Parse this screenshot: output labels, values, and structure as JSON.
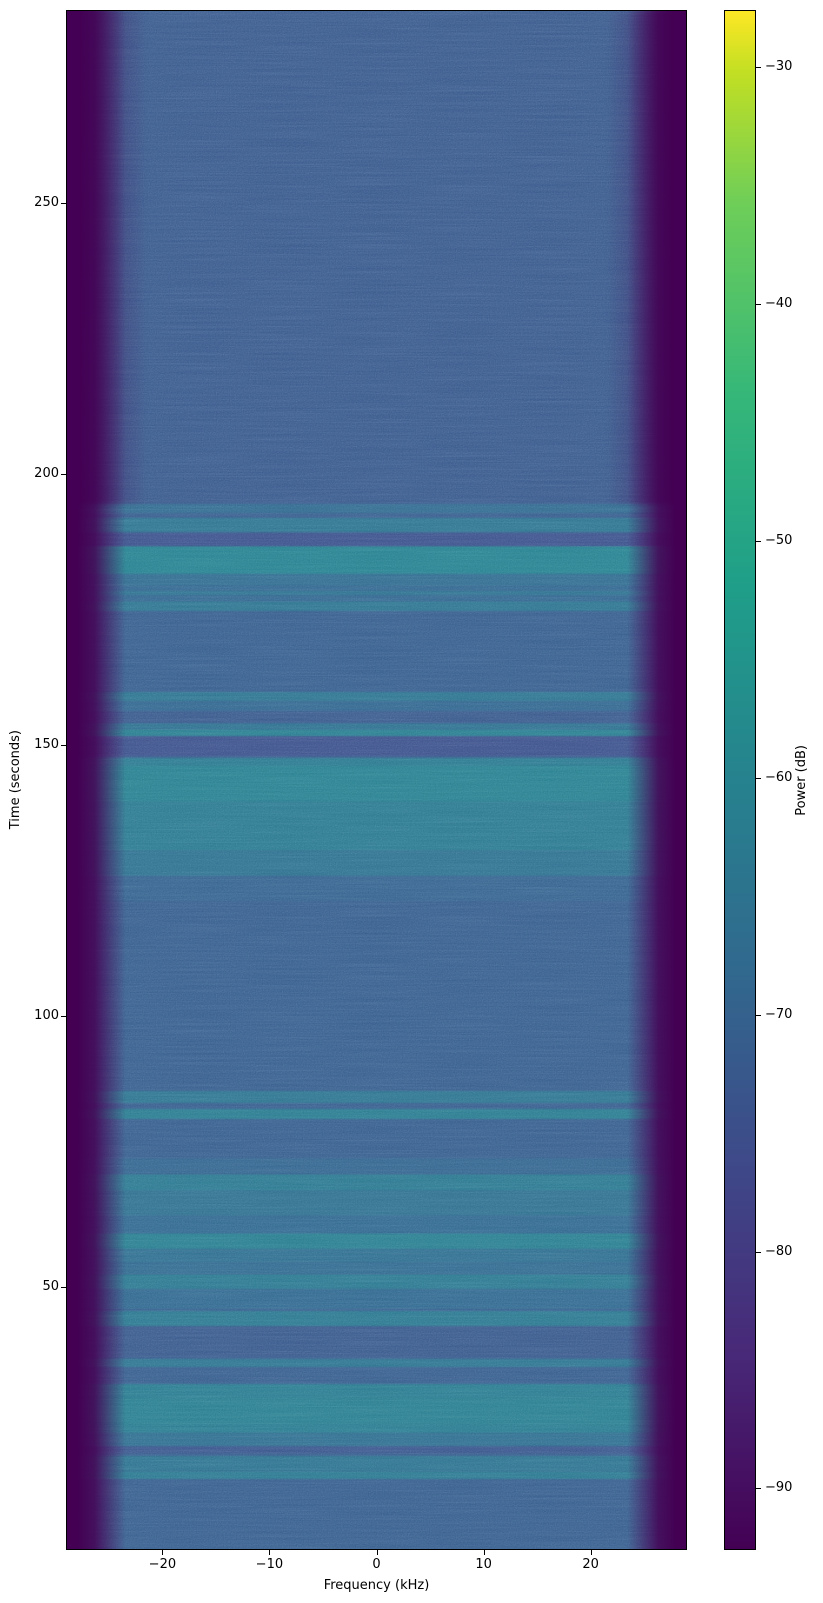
{
  "figure": {
    "background_color": "#ffffff",
    "text_color": "#000000"
  },
  "chart_data": {
    "type": "heatmap",
    "subtype": "spectrogram",
    "title": "",
    "xlabel": "Frequency (kHz)",
    "ylabel": "Time (seconds)",
    "colorbar_label": "Power (dB)",
    "colormap": "viridis",
    "grid": false,
    "x_range_khz": [
      -29,
      29
    ],
    "y_range_seconds": [
      1.5,
      285.6
    ],
    "clim_db": [
      -92.6,
      -27.6
    ],
    "x_ticks_khz": [
      -20,
      -10,
      0,
      10,
      20
    ],
    "y_ticks_seconds": [
      50,
      100,
      150,
      200,
      250
    ],
    "colorbar_ticks_db": [
      -30,
      -40,
      -50,
      -60,
      -70,
      -80,
      -90
    ],
    "background_power_db": -71.5,
    "quiet_region": {
      "t0": 194.6,
      "t1": 285.6,
      "db": -72.4
    },
    "edge_rolloff": {
      "color": "#440154",
      "solid_frac": 0.018,
      "fade_frac": 0.095,
      "quiet_extra_fade_frac": 0.128
    },
    "events": [
      {
        "t0": 14.8,
        "t1": 16.3,
        "db": -64
      },
      {
        "t0": 16.3,
        "t1": 19.0,
        "db": -65.5
      },
      {
        "t0": 19.6,
        "t1": 20.9,
        "db": -73.5
      },
      {
        "t0": 20.9,
        "t1": 23.3,
        "db": -67
      },
      {
        "t0": 23.3,
        "t1": 32.3,
        "db": -63
      },
      {
        "t0": 24.9,
        "t1": 29.5,
        "db": -62
      },
      {
        "t0": 35.4,
        "t1": 36.9,
        "db": -65
      },
      {
        "t0": 37.3,
        "t1": 43.0,
        "db": -72.5
      },
      {
        "t0": 43.0,
        "t1": 45.8,
        "db": -64
      },
      {
        "t0": 46.1,
        "t1": 49.8,
        "db": -68.5
      },
      {
        "t0": 49.8,
        "t1": 52.6,
        "db": -64
      },
      {
        "t0": 52.6,
        "t1": 54.6,
        "db": -68
      },
      {
        "t0": 54.6,
        "t1": 57.2,
        "db": -67
      },
      {
        "t0": 57.2,
        "t1": 60.2,
        "db": -62
      },
      {
        "t0": 60.2,
        "t1": 63.3,
        "db": -68.5
      },
      {
        "t0": 63.3,
        "t1": 67.9,
        "db": -66.5
      },
      {
        "t0": 67.9,
        "t1": 71.1,
        "db": -64
      },
      {
        "t0": 71.1,
        "t1": 74.0,
        "db": -69.5
      },
      {
        "t0": 81.2,
        "t1": 83.1,
        "db": -63
      },
      {
        "t0": 84.2,
        "t1": 86.4,
        "db": -65
      },
      {
        "t0": 121.4,
        "t1": 126.0,
        "db": -70
      },
      {
        "t0": 126.0,
        "t1": 130.6,
        "db": -66
      },
      {
        "t0": 130.6,
        "t1": 147.8,
        "db": -63.5
      },
      {
        "t0": 139.9,
        "t1": 146.3,
        "db": -61.5
      },
      {
        "t0": 148.2,
        "t1": 151.8,
        "db": -74.5
      },
      {
        "t0": 151.8,
        "t1": 153.1,
        "db": -62
      },
      {
        "t0": 153.1,
        "t1": 154.2,
        "db": -66
      },
      {
        "t0": 154.2,
        "t1": 156.5,
        "db": -72.5
      },
      {
        "t0": 156.5,
        "t1": 158.3,
        "db": -69
      },
      {
        "t0": 158.3,
        "t1": 160.0,
        "db": -65
      },
      {
        "t0": 174.9,
        "t1": 176.8,
        "db": -65
      },
      {
        "t0": 176.8,
        "t1": 179.5,
        "db": -69
      },
      {
        "t0": 177.9,
        "t1": 178.6,
        "db": -66
      },
      {
        "t0": 179.5,
        "t1": 181.7,
        "db": -67.5
      },
      {
        "t0": 181.7,
        "t1": 186.9,
        "db": -61
      },
      {
        "t0": 186.9,
        "t1": 189.3,
        "db": -74.5
      },
      {
        "t0": 189.5,
        "t1": 192.0,
        "db": -65
      },
      {
        "t0": 193.0,
        "t1": 194.6,
        "db": -68
      }
    ],
    "colormap_stops": [
      [
        0.0,
        "#440154"
      ],
      [
        0.125,
        "#482878"
      ],
      [
        0.25,
        "#3e4989"
      ],
      [
        0.375,
        "#31688e"
      ],
      [
        0.5,
        "#26828e"
      ],
      [
        0.625,
        "#1f9e89"
      ],
      [
        0.75,
        "#35b779"
      ],
      [
        0.875,
        "#6ece58"
      ],
      [
        0.96,
        "#c2df23"
      ],
      [
        1.0,
        "#fde725"
      ]
    ]
  }
}
